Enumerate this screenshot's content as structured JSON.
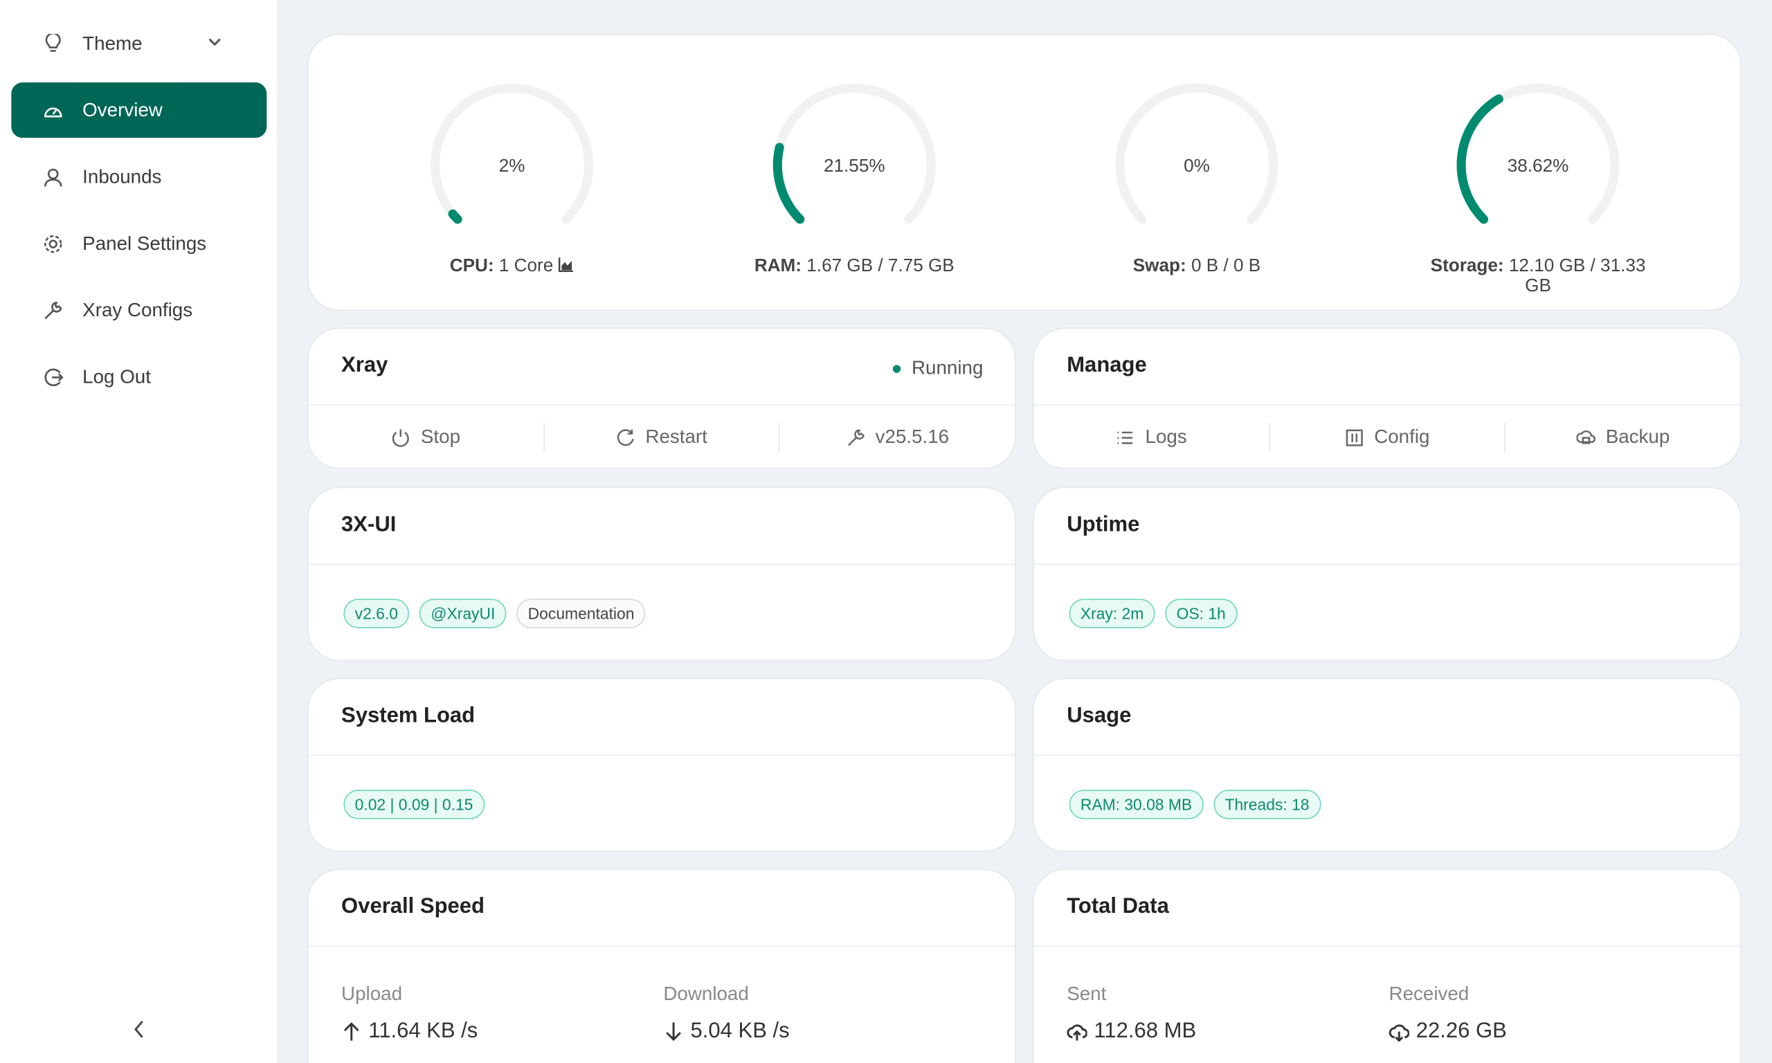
{
  "colors": {
    "accent": "#008a70",
    "active_bg": "#006655",
    "track": "#f1f1f1"
  },
  "sidebar": {
    "theme": {
      "label": "Theme",
      "icon": "bulb-icon"
    },
    "items": [
      {
        "label": "Overview",
        "icon": "dashboard-icon",
        "active": true
      },
      {
        "label": "Inbounds",
        "icon": "user-icon"
      },
      {
        "label": "Panel Settings",
        "icon": "gear-icon"
      },
      {
        "label": "Xray Configs",
        "icon": "wrench-icon"
      },
      {
        "label": "Log Out",
        "icon": "logout-icon"
      }
    ]
  },
  "gauges": [
    {
      "percent": 2,
      "text": "2%",
      "label": "CPU:",
      "value": "1 Core"
    },
    {
      "percent": 21.55,
      "text": "21.55%",
      "label": "RAM:",
      "value": "1.67 GB / 7.75 GB"
    },
    {
      "percent": 0,
      "text": "0%",
      "label": "Swap:",
      "value": "0 B / 0 B"
    },
    {
      "percent": 38.62,
      "text": "38.62%",
      "label": "Storage:",
      "value": "12.10 GB / 31.33 GB"
    }
  ],
  "xray": {
    "title": "Xray",
    "status": "Running",
    "actions": [
      "Stop",
      "Restart",
      "v25.5.16"
    ]
  },
  "manage": {
    "title": "Manage",
    "actions": [
      "Logs",
      "Config",
      "Backup"
    ]
  },
  "app": {
    "title": "3X-UI",
    "tags": [
      "v2.6.0",
      "@XrayUI",
      "Documentation"
    ]
  },
  "uptime": {
    "title": "Uptime",
    "tags": [
      "Xray: 2m",
      "OS: 1h"
    ]
  },
  "load": {
    "title": "System Load",
    "tags": [
      "0.02 | 0.09 | 0.15"
    ]
  },
  "usage": {
    "title": "Usage",
    "tags": [
      "RAM: 30.08 MB",
      "Threads: 18"
    ]
  },
  "speed": {
    "title": "Overall Speed",
    "upload_label": "Upload",
    "upload": "11.64 KB /s",
    "download_label": "Download",
    "download": "5.04 KB /s"
  },
  "total": {
    "title": "Total Data",
    "sent_label": "Sent",
    "sent": "112.68 MB",
    "received_label": "Received",
    "received": "22.26 GB"
  }
}
